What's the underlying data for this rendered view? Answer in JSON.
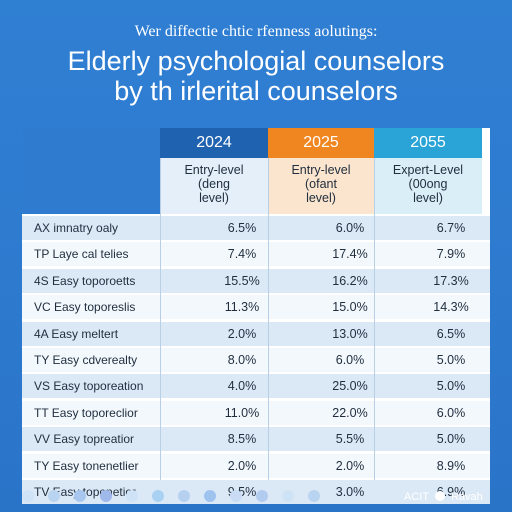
{
  "header": {
    "subtitle": "Wer diffectie chtic rfenness aolutings:",
    "title_line1": "Elderly psychologial counselors",
    "title_line2": "by th irlerital counselors"
  },
  "chart_data": {
    "type": "table",
    "columns": [
      {
        "year": "2024",
        "sublabel": [
          "Entry-level",
          "(deng",
          "level)"
        ],
        "color": "#1f62b0"
      },
      {
        "year": "2025",
        "sublabel": [
          "Entry-level",
          "(ofant",
          "level)"
        ],
        "color": "#f0861f"
      },
      {
        "year": "2055",
        "sublabel": [
          "Expert-Level",
          "(00ong",
          "level)"
        ],
        "color": "#2aa3d6"
      }
    ],
    "rows": [
      {
        "label": "AX  imnatry oaly",
        "values": [
          "6.5%",
          "6.0%",
          "6.7%"
        ]
      },
      {
        "label": "TP  Laye cal telies",
        "values": [
          "7.4%",
          "17.4%",
          "7.9%"
        ]
      },
      {
        "label": "4S  Easy toporoetts",
        "values": [
          "15.5%",
          "16.2%",
          "17.3%"
        ]
      },
      {
        "label": "VC  Easy toporeslis",
        "values": [
          "11.3%",
          "15.0%",
          "14.3%"
        ]
      },
      {
        "label": "4A  Easy meltert",
        "values": [
          "2.0%",
          "13.0%",
          "6.5%"
        ]
      },
      {
        "label": "TY  Easy cdverealty",
        "values": [
          "8.0%",
          "6.0%",
          "5.0%"
        ]
      },
      {
        "label": "VS  Easy toporeation",
        "values": [
          "4.0%",
          "25.0%",
          "5.0%"
        ]
      },
      {
        "label": "TT  Easy toporeclior",
        "values": [
          "11.0%",
          "22.0%",
          "6.0%"
        ]
      },
      {
        "label": "VV  Easy topreatior",
        "values": [
          "8.5%",
          "5.5%",
          "5.0%"
        ]
      },
      {
        "label": "TY  Easy tonenetlier",
        "values": [
          "2.0%",
          "2.0%",
          "8.9%"
        ]
      },
      {
        "label": "TV  Easy topenetior",
        "values": [
          "9.5%",
          "3.0%",
          "6.9%"
        ]
      }
    ]
  },
  "footer": {
    "brand_left": "ACIT",
    "brand_right": "Ravah",
    "dot_colors": [
      "#cfe3f6",
      "#b9d4f1",
      "#a9c6ee",
      "#9fb9ea",
      "#cfe3f6",
      "#a9d1f2",
      "#b6d0f0",
      "#9ec3ee",
      "#c9dcf4",
      "#b2ccf0",
      "#cfe3f6",
      "#b9d4f1"
    ]
  }
}
